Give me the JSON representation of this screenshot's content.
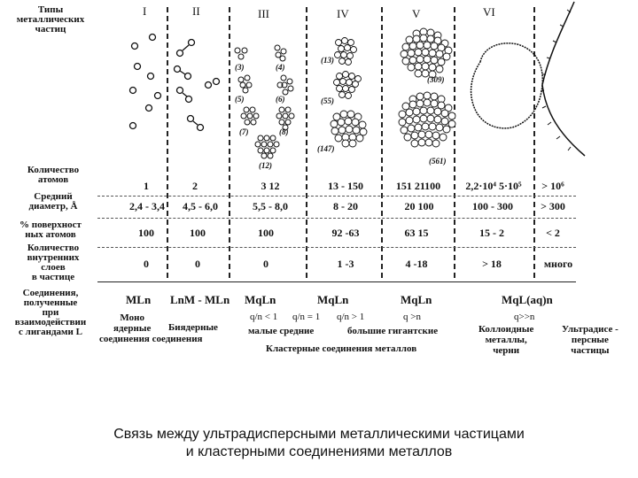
{
  "row_labels": {
    "types": [
      "Типы",
      "металлических",
      "частиц"
    ],
    "atoms": [
      "Количество",
      "атомов"
    ],
    "diameter": [
      "Средний",
      "диаметр, Å"
    ],
    "surface": [
      "% поверхност",
      "ных атомов"
    ],
    "inner": [
      "Количество",
      "внутренних",
      "слоев",
      "в частице"
    ],
    "compounds": [
      "Соединения,",
      "полученные",
      "при",
      "взаимодействии",
      "с лигандами L"
    ]
  },
  "columns": [
    "I",
    "II",
    "III",
    "IV",
    "V",
    "VI"
  ],
  "cluster_labels": [
    "(3)",
    "(4)",
    "(5)",
    "(6)",
    "(7)",
    "(8)",
    "(12)",
    "(13)",
    "(55)",
    "(147)",
    "(309)",
    "(561)"
  ],
  "table": {
    "atoms": [
      "1",
      "2",
      "3   12",
      "13 - 150",
      "151  21100",
      "2,2·10⁴  5·10⁵",
      "> 10⁶"
    ],
    "diameter": [
      "2,4 - 3,4",
      "4,5 - 6,0",
      "5,5 - 8,0",
      "8 - 20",
      "20  100",
      "100 - 300",
      "> 300"
    ],
    "surface": [
      "100",
      "100",
      "100",
      "92 -63",
      "63  15",
      "15 - 2",
      "< 2"
    ],
    "inner": [
      "0",
      "0",
      "0",
      "1 -3",
      "4 -18",
      "> 18",
      "много"
    ]
  },
  "formulas": {
    "ml": "MLn",
    "lnm": "LnM - MLn",
    "mql1": "MqLn",
    "mql2": "MqLn",
    "mql3": "MqLn",
    "mql4": "MqL(aq)n"
  },
  "ratios": {
    "r1": "q/n < 1",
    "r2": "q/n = 1",
    "r3": "q/n > 1",
    "r4": "q >n",
    "r5": "q>>n"
  },
  "notes": {
    "mono": [
      "Моно",
      "ядерные"
    ],
    "binuclear": [
      "Биядерные"
    ],
    "compounds_word": [
      "соединения соединения"
    ],
    "small_medium": [
      "малые средние"
    ],
    "large_giant": [
      "большие гигантские"
    ],
    "colloid": [
      "Коллоидные",
      "металлы,",
      "черни"
    ],
    "ultra": [
      "Ультрадисе -",
      "персные",
      "частицы"
    ],
    "cluster": [
      "Кластерные соединения металлов"
    ]
  },
  "caption": [
    "Связь между ультрадисперсными металлическими частицами",
    "и кластерными соединениями металлов"
  ]
}
